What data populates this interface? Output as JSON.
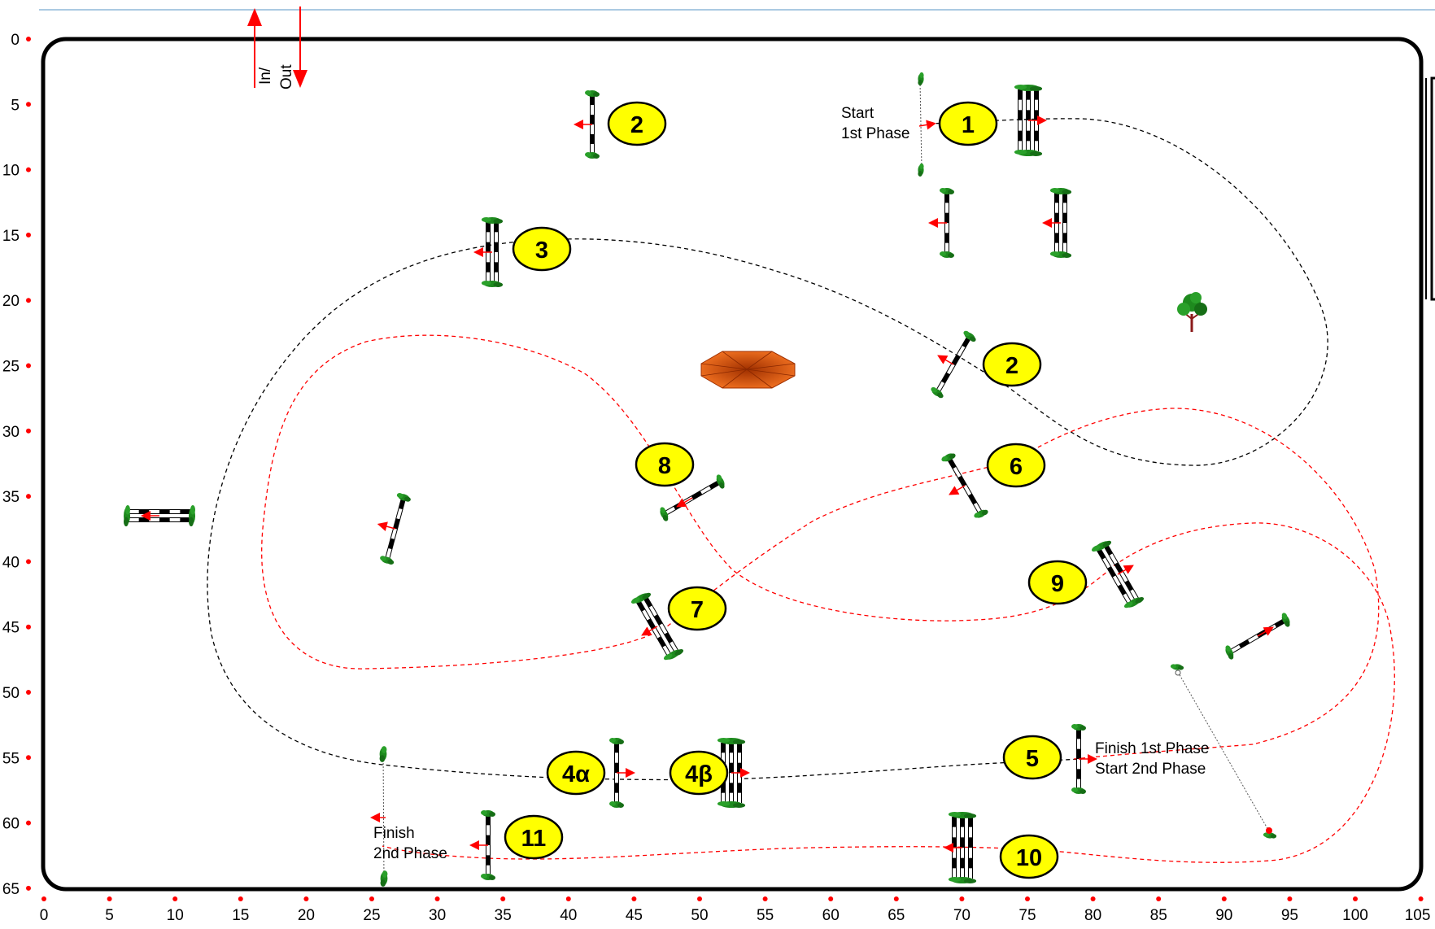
{
  "entrance": {
    "label_in": "In/",
    "label_out": "Out"
  },
  "axes": {
    "x_ticks": [
      "0",
      "5",
      "10",
      "15",
      "20",
      "25",
      "30",
      "35",
      "40",
      "45",
      "50",
      "55",
      "60",
      "65",
      "70",
      "75",
      "80",
      "85",
      "90",
      "95",
      "100",
      "105"
    ],
    "y_ticks": [
      "0",
      "5",
      "10",
      "15",
      "20",
      "25",
      "30",
      "35",
      "40",
      "45",
      "50",
      "55",
      "60",
      "65"
    ]
  },
  "obstacles": [
    {
      "num": "1",
      "kind": "number-marker"
    },
    {
      "num": "2",
      "kind": "number-marker"
    },
    {
      "num": "2",
      "kind": "number-marker"
    },
    {
      "num": "3",
      "kind": "number-marker"
    },
    {
      "num": "4α",
      "kind": "number-marker"
    },
    {
      "num": "4β",
      "kind": "number-marker"
    },
    {
      "num": "5",
      "kind": "number-marker"
    },
    {
      "num": "6",
      "kind": "number-marker"
    },
    {
      "num": "7",
      "kind": "number-marker"
    },
    {
      "num": "8",
      "kind": "number-marker"
    },
    {
      "num": "9",
      "kind": "number-marker"
    },
    {
      "num": "10",
      "kind": "number-marker"
    },
    {
      "num": "11",
      "kind": "number-marker"
    }
  ],
  "annotations": {
    "start_1st_line1": "Start",
    "start_1st_line2": "1st Phase",
    "finish_1st": "Finish 1st Phase",
    "start_2nd": "Start   2nd Phase",
    "finish_2nd_line1": "Finish",
    "finish_2nd_line2": "2nd Phase"
  },
  "colors": {
    "marker_fill": "#ffff00",
    "tick_dot": "#ff0000",
    "path_phase1": "#000000",
    "path_phase2": "#ff0000",
    "foliage": "#1e8a1e",
    "centerpiece": "#e06010"
  }
}
